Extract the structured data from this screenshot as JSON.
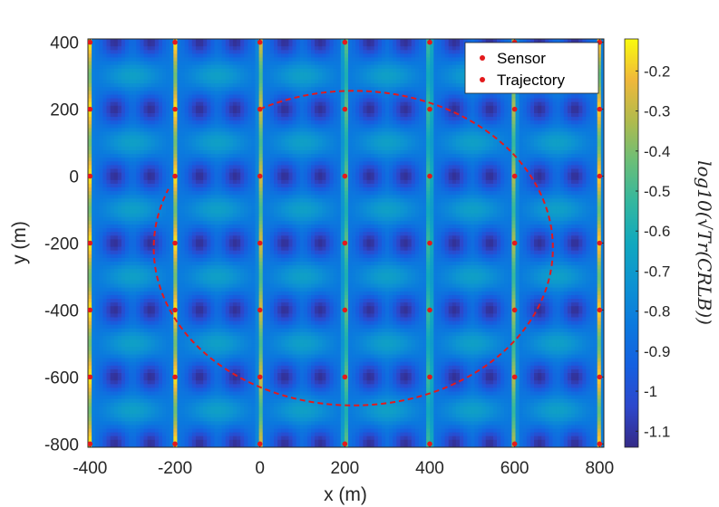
{
  "chart_data": {
    "type": "heatmap",
    "xlabel": "x (m)",
    "ylabel": "y (m)",
    "xlim": [
      -405,
      810
    ],
    "ylim": [
      -810,
      410
    ],
    "xticks": [
      "-400",
      "-200",
      "0",
      "200",
      "400",
      "600",
      "800"
    ],
    "xtick_values": [
      -400,
      -200,
      0,
      200,
      400,
      600,
      800
    ],
    "yticks": [
      "400",
      "200",
      "0",
      "-200",
      "-400",
      "-600",
      "-800"
    ],
    "ytick_values": [
      400,
      200,
      0,
      -200,
      -400,
      -600,
      -800
    ],
    "colorbar": {
      "label": "log10(√Tr(CRLB))",
      "clim": [
        -1.14,
        -0.12
      ],
      "ticks": [
        "-0.2",
        "-0.3",
        "-0.4",
        "-0.5",
        "-0.6",
        "-0.7",
        "-0.8",
        "-0.9",
        "-1",
        "-1.1"
      ],
      "tick_values": [
        -0.2,
        -0.3,
        -0.4,
        -0.5,
        -0.6,
        -0.7,
        -0.8,
        -0.9,
        -1.0,
        -1.1
      ],
      "colormap": "parula"
    },
    "sensor_grid": {
      "x": [
        -400,
        -200,
        0,
        200,
        400,
        600,
        800
      ],
      "y": [
        400,
        200,
        0,
        -200,
        -400,
        -600,
        -800
      ]
    },
    "trajectory": {
      "shape": "circle",
      "center": [
        220,
        -215
      ],
      "radius": 470,
      "start_point": [
        0,
        200
      ],
      "direction": "clockwise",
      "covered_angle_deg": 320,
      "color": "#e31a1c",
      "style": "dashed"
    },
    "legend": {
      "position": "top-right",
      "entries": [
        {
          "label": "Sensor",
          "marker": "dot",
          "color": "#e31a1c"
        },
        {
          "label": "Trajectory",
          "marker": "dot",
          "color": "#e31a1c"
        }
      ]
    },
    "grid": false
  }
}
